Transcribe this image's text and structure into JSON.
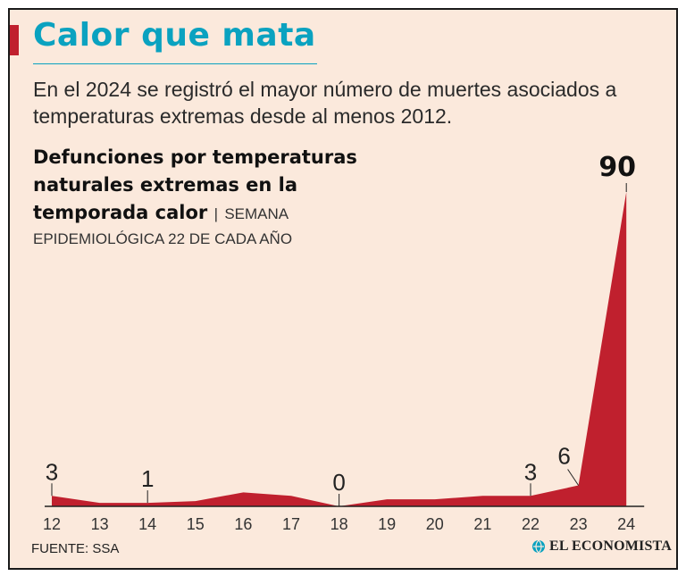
{
  "header": {
    "title": "Calor que mata",
    "subtitle": "En el 2024 se registró el mayor número de muertes asociados a temperaturas extremas desde al menos 2012."
  },
  "chart_heading": {
    "title": "Defunciones por temperaturas naturales extremas en la temporada calor",
    "separator": "|",
    "note_line1": "SEMANA",
    "note_line2": "EPIDEMIOLÓGICA 22 DE CADA AÑO"
  },
  "footer": {
    "source": "FUENTE: SSA",
    "brand": "EL ECONOMISTA"
  },
  "colors": {
    "background": "#fbe9dc",
    "title": "#0aa2c0",
    "accent": "#c0202e",
    "area": "#c0202e"
  },
  "chart_data": {
    "type": "area",
    "x": [
      "12",
      "13",
      "14",
      "15",
      "16",
      "17",
      "18",
      "19",
      "20",
      "21",
      "22",
      "23",
      "24"
    ],
    "values": [
      3,
      1,
      1,
      1.5,
      4,
      3,
      0,
      2,
      2,
      3,
      3,
      6,
      90
    ],
    "labeled_points": [
      {
        "x": "12",
        "label": "3"
      },
      {
        "x": "14",
        "label": "1"
      },
      {
        "x": "18",
        "label": "0"
      },
      {
        "x": "22",
        "label": "3"
      },
      {
        "x": "23",
        "label": "6"
      },
      {
        "x": "24",
        "label": "90"
      }
    ],
    "ylim": [
      0,
      90
    ],
    "xlabel": "",
    "ylabel": ""
  }
}
